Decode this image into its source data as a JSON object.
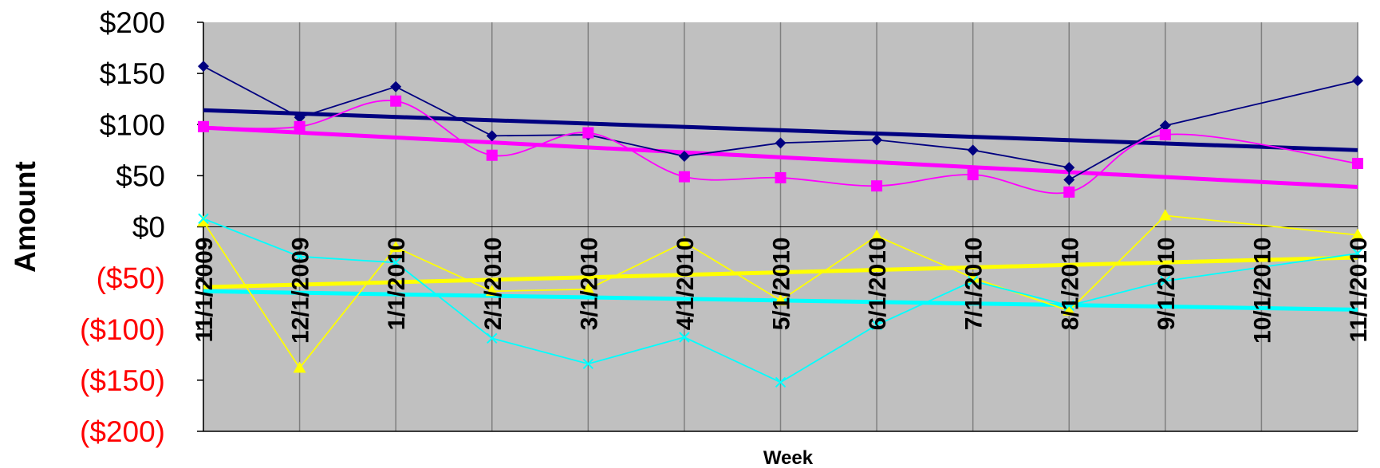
{
  "chart_data": {
    "type": "line",
    "xlabel": "Week",
    "ylabel": "Amount",
    "ylim": [
      -200,
      200
    ],
    "grid": true,
    "plot_background": "#c0c0c0",
    "negative_tick_color": "#ff0000",
    "x": [
      "11/1/2009",
      "12/1/2009",
      "1/1/2010",
      "2/1/2010",
      "3/1/2010",
      "4/1/2010",
      "5/1/2010",
      "6/1/2010",
      "7/1/2010",
      "8/1/2010",
      "9/1/2010",
      "10/1/2010",
      "11/1/2010"
    ],
    "y_ticks": [
      {
        "value": 200,
        "label": "$200"
      },
      {
        "value": 150,
        "label": "$150"
      },
      {
        "value": 100,
        "label": "$100"
      },
      {
        "value": 50,
        "label": "$50"
      },
      {
        "value": 0,
        "label": "$0"
      },
      {
        "value": -50,
        "label": "($50)"
      },
      {
        "value": -100,
        "label": "($100)"
      },
      {
        "value": -150,
        "label": "($150)"
      },
      {
        "value": -200,
        "label": "($200)"
      }
    ],
    "series": [
      {
        "color": "#000080",
        "marker": "diamond",
        "smooth": false,
        "points": [
          [
            0,
            157
          ],
          [
            1,
            107
          ],
          [
            2,
            137
          ],
          [
            3,
            89
          ],
          [
            4,
            90
          ],
          [
            5,
            69
          ],
          [
            6,
            82
          ],
          [
            7,
            85
          ],
          [
            8,
            75
          ],
          [
            9,
            58
          ],
          [
            9,
            46
          ],
          [
            10,
            99
          ],
          [
            12,
            143
          ]
        ],
        "trend": [
          114,
          75
        ]
      },
      {
        "color": "#ff00ff",
        "marker": "square",
        "smooth": true,
        "points": [
          [
            0,
            98
          ],
          [
            1,
            98
          ],
          [
            2,
            123
          ],
          [
            3,
            70
          ],
          [
            4,
            92
          ],
          [
            5,
            49
          ],
          [
            6,
            48
          ],
          [
            7,
            40
          ],
          [
            8,
            51
          ],
          [
            9,
            34
          ],
          [
            10,
            90
          ],
          [
            12,
            62
          ]
        ],
        "trend": [
          97,
          39
        ]
      },
      {
        "color": "#ffff00",
        "marker": "triangle",
        "smooth": false,
        "points": [
          [
            0,
            5
          ],
          [
            1,
            -138
          ],
          [
            2,
            -20
          ],
          [
            3,
            -63
          ],
          [
            4,
            -61
          ],
          [
            5,
            -15
          ],
          [
            6,
            -72
          ],
          [
            7,
            -9
          ],
          [
            8,
            -50
          ],
          [
            9,
            -82
          ],
          [
            10,
            11
          ],
          [
            12,
            -8
          ]
        ],
        "trend": [
          -59,
          -30
        ]
      },
      {
        "color": "#00ffff",
        "marker": "x",
        "smooth": false,
        "points": [
          [
            0,
            8
          ],
          [
            1,
            -29
          ],
          [
            2,
            -35
          ],
          [
            3,
            -109
          ],
          [
            4,
            -134
          ],
          [
            5,
            -108
          ],
          [
            6,
            -152
          ],
          [
            7,
            -96
          ],
          [
            8,
            -53
          ],
          [
            9,
            -77
          ],
          [
            10,
            -53
          ],
          [
            12,
            -26
          ]
        ],
        "trend": [
          -63,
          -81
        ]
      }
    ]
  }
}
